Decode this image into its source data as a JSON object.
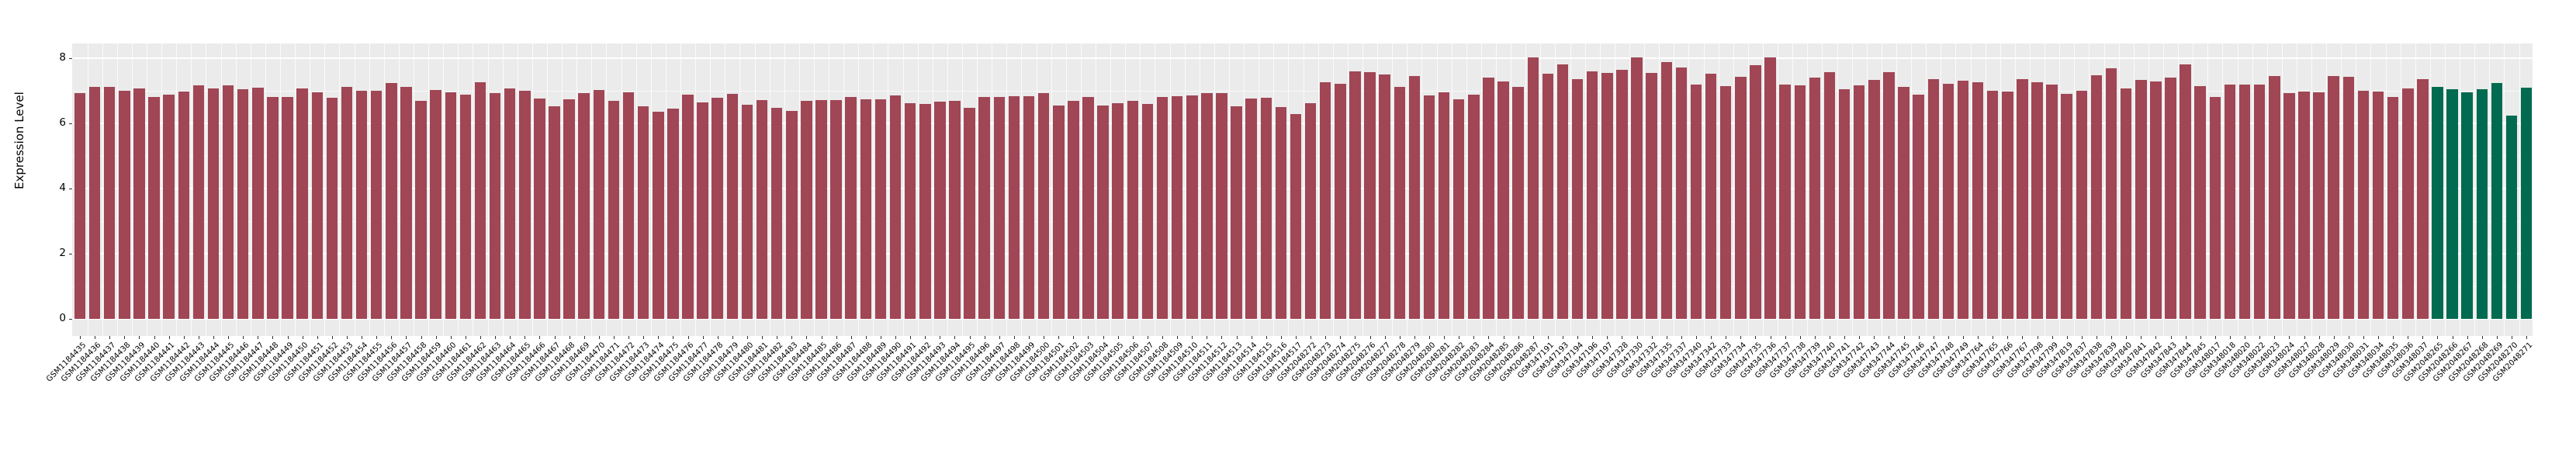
{
  "chart_data": {
    "type": "bar",
    "title": "",
    "xlabel": "",
    "ylabel": "Expression Level",
    "ylim": [
      0,
      8.45
    ],
    "yticks": [
      0,
      2,
      4,
      6,
      8
    ],
    "grid": "on",
    "legend_position": "none",
    "colors": {
      "red_group": "#A04655",
      "green_group": "#006B50"
    },
    "bars": [
      {
        "label": "GSM1184435",
        "value": 6.92,
        "group": "red_group"
      },
      {
        "label": "GSM1184436",
        "value": 7.11,
        "group": "red_group"
      },
      {
        "label": "GSM1184437",
        "value": 7.11,
        "group": "red_group"
      },
      {
        "label": "GSM1184438",
        "value": 6.99,
        "group": "red_group"
      },
      {
        "label": "GSM1184439",
        "value": 7.07,
        "group": "red_group"
      },
      {
        "label": "GSM1184440",
        "value": 6.81,
        "group": "red_group"
      },
      {
        "label": "GSM1184441",
        "value": 6.88,
        "group": "red_group"
      },
      {
        "label": "GSM1184442",
        "value": 6.97,
        "group": "red_group"
      },
      {
        "label": "GSM1184443",
        "value": 7.16,
        "group": "red_group"
      },
      {
        "label": "GSM1184444",
        "value": 7.08,
        "group": "red_group"
      },
      {
        "label": "GSM1184445",
        "value": 7.17,
        "group": "red_group"
      },
      {
        "label": "GSM1184446",
        "value": 7.04,
        "group": "red_group"
      },
      {
        "label": "GSM1184447",
        "value": 7.1,
        "group": "red_group"
      },
      {
        "label": "GSM1184448",
        "value": 6.8,
        "group": "red_group"
      },
      {
        "label": "GSM1184449",
        "value": 6.82,
        "group": "red_group"
      },
      {
        "label": "GSM1184450",
        "value": 7.08,
        "group": "red_group"
      },
      {
        "label": "GSM1184451",
        "value": 6.96,
        "group": "red_group"
      },
      {
        "label": "GSM1184452",
        "value": 6.79,
        "group": "red_group"
      },
      {
        "label": "GSM1184453",
        "value": 7.13,
        "group": "red_group"
      },
      {
        "label": "GSM1184454",
        "value": 7.01,
        "group": "red_group"
      },
      {
        "label": "GSM1184455",
        "value": 6.99,
        "group": "red_group"
      },
      {
        "label": "GSM1184456",
        "value": 7.23,
        "group": "red_group"
      },
      {
        "label": "GSM1184457",
        "value": 7.12,
        "group": "red_group"
      },
      {
        "label": "GSM1184458",
        "value": 6.69,
        "group": "red_group"
      },
      {
        "label": "GSM1184459",
        "value": 7.03,
        "group": "red_group"
      },
      {
        "label": "GSM1184460",
        "value": 6.95,
        "group": "red_group"
      },
      {
        "label": "GSM1184461",
        "value": 6.88,
        "group": "red_group"
      },
      {
        "label": "GSM1184462",
        "value": 7.27,
        "group": "red_group"
      },
      {
        "label": "GSM1184463",
        "value": 6.94,
        "group": "red_group"
      },
      {
        "label": "GSM1184464",
        "value": 7.06,
        "group": "red_group"
      },
      {
        "label": "GSM1184465",
        "value": 7.01,
        "group": "red_group"
      },
      {
        "label": "GSM1184466",
        "value": 6.76,
        "group": "red_group"
      },
      {
        "label": "GSM1184467",
        "value": 6.53,
        "group": "red_group"
      },
      {
        "label": "GSM1184468",
        "value": 6.73,
        "group": "red_group"
      },
      {
        "label": "GSM1184469",
        "value": 6.92,
        "group": "red_group"
      },
      {
        "label": "GSM1184470",
        "value": 7.03,
        "group": "red_group"
      },
      {
        "label": "GSM1184471",
        "value": 6.68,
        "group": "red_group"
      },
      {
        "label": "GSM1184472",
        "value": 6.95,
        "group": "red_group"
      },
      {
        "label": "GSM1184473",
        "value": 6.53,
        "group": "red_group"
      },
      {
        "label": "GSM1184474",
        "value": 6.36,
        "group": "red_group"
      },
      {
        "label": "GSM1184475",
        "value": 6.45,
        "group": "red_group"
      },
      {
        "label": "GSM1184476",
        "value": 6.89,
        "group": "red_group"
      },
      {
        "label": "GSM1184477",
        "value": 6.65,
        "group": "red_group"
      },
      {
        "label": "GSM1184478",
        "value": 6.79,
        "group": "red_group"
      },
      {
        "label": "GSM1184479",
        "value": 6.91,
        "group": "red_group"
      },
      {
        "label": "GSM1184480",
        "value": 6.57,
        "group": "red_group"
      },
      {
        "label": "GSM1184481",
        "value": 6.71,
        "group": "red_group"
      },
      {
        "label": "GSM1184482",
        "value": 6.48,
        "group": "red_group"
      },
      {
        "label": "GSM1184483",
        "value": 6.39,
        "group": "red_group"
      },
      {
        "label": "GSM1184484",
        "value": 6.7,
        "group": "red_group"
      },
      {
        "label": "GSM1184485",
        "value": 6.72,
        "group": "red_group"
      },
      {
        "label": "GSM1184486",
        "value": 6.72,
        "group": "red_group"
      },
      {
        "label": "GSM1184487",
        "value": 6.82,
        "group": "red_group"
      },
      {
        "label": "GSM1184488",
        "value": 6.75,
        "group": "red_group"
      },
      {
        "label": "GSM1184489",
        "value": 6.73,
        "group": "red_group"
      },
      {
        "label": "GSM1184490",
        "value": 6.85,
        "group": "red_group"
      },
      {
        "label": "GSM1184491",
        "value": 6.63,
        "group": "red_group"
      },
      {
        "label": "GSM1184492",
        "value": 6.59,
        "group": "red_group"
      },
      {
        "label": "GSM1184493",
        "value": 6.66,
        "group": "red_group"
      },
      {
        "label": "GSM1184494",
        "value": 6.7,
        "group": "red_group"
      },
      {
        "label": "GSM1184495",
        "value": 6.48,
        "group": "red_group"
      },
      {
        "label": "GSM1184496",
        "value": 6.81,
        "group": "red_group"
      },
      {
        "label": "GSM1184497",
        "value": 6.81,
        "group": "red_group"
      },
      {
        "label": "GSM1184498",
        "value": 6.84,
        "group": "red_group"
      },
      {
        "label": "GSM1184499",
        "value": 6.83,
        "group": "red_group"
      },
      {
        "label": "GSM1184500",
        "value": 6.92,
        "group": "red_group"
      },
      {
        "label": "GSM1184501",
        "value": 6.55,
        "group": "red_group"
      },
      {
        "label": "GSM1184502",
        "value": 6.69,
        "group": "red_group"
      },
      {
        "label": "GSM1184503",
        "value": 6.82,
        "group": "red_group"
      },
      {
        "label": "GSM1184504",
        "value": 6.55,
        "group": "red_group"
      },
      {
        "label": "GSM1184505",
        "value": 6.63,
        "group": "red_group"
      },
      {
        "label": "GSM1184506",
        "value": 6.7,
        "group": "red_group"
      },
      {
        "label": "GSM1184507",
        "value": 6.59,
        "group": "red_group"
      },
      {
        "label": "GSM1184508",
        "value": 6.8,
        "group": "red_group"
      },
      {
        "label": "GSM1184509",
        "value": 6.83,
        "group": "red_group"
      },
      {
        "label": "GSM1184510",
        "value": 6.86,
        "group": "red_group"
      },
      {
        "label": "GSM1184511",
        "value": 6.93,
        "group": "red_group"
      },
      {
        "label": "GSM1184512",
        "value": 6.94,
        "group": "red_group"
      },
      {
        "label": "GSM1184513",
        "value": 6.52,
        "group": "red_group"
      },
      {
        "label": "GSM1184514",
        "value": 6.77,
        "group": "red_group"
      },
      {
        "label": "GSM1184515",
        "value": 6.78,
        "group": "red_group"
      },
      {
        "label": "GSM1184516",
        "value": 6.51,
        "group": "red_group"
      },
      {
        "label": "GSM1184517",
        "value": 6.28,
        "group": "red_group"
      },
      {
        "label": "GSM2048272",
        "value": 6.61,
        "group": "red_group"
      },
      {
        "label": "GSM2048273",
        "value": 7.27,
        "group": "red_group"
      },
      {
        "label": "GSM2048274",
        "value": 7.22,
        "group": "red_group"
      },
      {
        "label": "GSM2048275",
        "value": 7.6,
        "group": "red_group"
      },
      {
        "label": "GSM2048276",
        "value": 7.58,
        "group": "red_group"
      },
      {
        "label": "GSM2048277",
        "value": 7.5,
        "group": "red_group"
      },
      {
        "label": "GSM2048278",
        "value": 7.12,
        "group": "red_group"
      },
      {
        "label": "GSM2048279",
        "value": 7.46,
        "group": "red_group"
      },
      {
        "label": "GSM2048280",
        "value": 6.85,
        "group": "red_group"
      },
      {
        "label": "GSM2048281",
        "value": 6.96,
        "group": "red_group"
      },
      {
        "label": "GSM2048282",
        "value": 6.73,
        "group": "red_group"
      },
      {
        "label": "GSM2048283",
        "value": 6.89,
        "group": "red_group"
      },
      {
        "label": "GSM2048284",
        "value": 7.4,
        "group": "red_group"
      },
      {
        "label": "GSM2048285",
        "value": 7.29,
        "group": "red_group"
      },
      {
        "label": "GSM2048286",
        "value": 7.12,
        "group": "red_group"
      },
      {
        "label": "GSM2048287",
        "value": 8.02,
        "group": "red_group"
      },
      {
        "label": "GSM347191",
        "value": 7.53,
        "group": "red_group"
      },
      {
        "label": "GSM347193",
        "value": 7.8,
        "group": "red_group"
      },
      {
        "label": "GSM347194",
        "value": 7.36,
        "group": "red_group"
      },
      {
        "label": "GSM347196",
        "value": 7.59,
        "group": "red_group"
      },
      {
        "label": "GSM347197",
        "value": 7.55,
        "group": "red_group"
      },
      {
        "label": "GSM347328",
        "value": 7.65,
        "group": "red_group"
      },
      {
        "label": "GSM347330",
        "value": 8.02,
        "group": "red_group"
      },
      {
        "label": "GSM347332",
        "value": 7.55,
        "group": "red_group"
      },
      {
        "label": "GSM347335",
        "value": 7.89,
        "group": "red_group"
      },
      {
        "label": "GSM347337",
        "value": 7.72,
        "group": "red_group"
      },
      {
        "label": "GSM347340",
        "value": 7.2,
        "group": "red_group"
      },
      {
        "label": "GSM347342",
        "value": 7.52,
        "group": "red_group"
      },
      {
        "label": "GSM347733",
        "value": 7.14,
        "group": "red_group"
      },
      {
        "label": "GSM347734",
        "value": 7.42,
        "group": "red_group"
      },
      {
        "label": "GSM347735",
        "value": 7.79,
        "group": "red_group"
      },
      {
        "label": "GSM347736",
        "value": 8.02,
        "group": "red_group"
      },
      {
        "label": "GSM347737",
        "value": 7.18,
        "group": "red_group"
      },
      {
        "label": "GSM347738",
        "value": 7.17,
        "group": "red_group"
      },
      {
        "label": "GSM347739",
        "value": 7.4,
        "group": "red_group"
      },
      {
        "label": "GSM347740",
        "value": 7.58,
        "group": "red_group"
      },
      {
        "label": "GSM347741",
        "value": 7.05,
        "group": "red_group"
      },
      {
        "label": "GSM347742",
        "value": 7.17,
        "group": "red_group"
      },
      {
        "label": "GSM347743",
        "value": 7.34,
        "group": "red_group"
      },
      {
        "label": "GSM347744",
        "value": 7.56,
        "group": "red_group"
      },
      {
        "label": "GSM347745",
        "value": 7.11,
        "group": "red_group"
      },
      {
        "label": "GSM347746",
        "value": 6.89,
        "group": "red_group"
      },
      {
        "label": "GSM347747",
        "value": 7.35,
        "group": "red_group"
      },
      {
        "label": "GSM347748",
        "value": 7.22,
        "group": "red_group"
      },
      {
        "label": "GSM347749",
        "value": 7.31,
        "group": "red_group"
      },
      {
        "label": "GSM347764",
        "value": 7.26,
        "group": "red_group"
      },
      {
        "label": "GSM347765",
        "value": 7.0,
        "group": "red_group"
      },
      {
        "label": "GSM347766",
        "value": 6.98,
        "group": "red_group"
      },
      {
        "label": "GSM347767",
        "value": 7.35,
        "group": "red_group"
      },
      {
        "label": "GSM347798",
        "value": 7.27,
        "group": "red_group"
      },
      {
        "label": "GSM347799",
        "value": 7.2,
        "group": "red_group"
      },
      {
        "label": "GSM347819",
        "value": 6.91,
        "group": "red_group"
      },
      {
        "label": "GSM347837",
        "value": 6.99,
        "group": "red_group"
      },
      {
        "label": "GSM347838",
        "value": 7.47,
        "group": "red_group"
      },
      {
        "label": "GSM347839",
        "value": 7.69,
        "group": "red_group"
      },
      {
        "label": "GSM347840",
        "value": 7.08,
        "group": "red_group"
      },
      {
        "label": "GSM347841",
        "value": 7.33,
        "group": "red_group"
      },
      {
        "label": "GSM347842",
        "value": 7.28,
        "group": "red_group"
      },
      {
        "label": "GSM347843",
        "value": 7.41,
        "group": "red_group"
      },
      {
        "label": "GSM347844",
        "value": 7.82,
        "group": "red_group"
      },
      {
        "label": "GSM347845",
        "value": 7.14,
        "group": "red_group"
      },
      {
        "label": "GSM348017",
        "value": 6.82,
        "group": "red_group"
      },
      {
        "label": "GSM348018",
        "value": 7.2,
        "group": "red_group"
      },
      {
        "label": "GSM348020",
        "value": 7.2,
        "group": "red_group"
      },
      {
        "label": "GSM348022",
        "value": 7.19,
        "group": "red_group"
      },
      {
        "label": "GSM348023",
        "value": 7.46,
        "group": "red_group"
      },
      {
        "label": "GSM348024",
        "value": 6.92,
        "group": "red_group"
      },
      {
        "label": "GSM348027",
        "value": 6.98,
        "group": "red_group"
      },
      {
        "label": "GSM348028",
        "value": 6.95,
        "group": "red_group"
      },
      {
        "label": "GSM348029",
        "value": 7.45,
        "group": "red_group"
      },
      {
        "label": "GSM348030",
        "value": 7.43,
        "group": "red_group"
      },
      {
        "label": "GSM348031",
        "value": 7.01,
        "group": "red_group"
      },
      {
        "label": "GSM348034",
        "value": 6.98,
        "group": "red_group"
      },
      {
        "label": "GSM348035",
        "value": 6.8,
        "group": "red_group"
      },
      {
        "label": "GSM348036",
        "value": 7.07,
        "group": "red_group"
      },
      {
        "label": "GSM348037",
        "value": 7.36,
        "group": "red_group"
      },
      {
        "label": "GSM2048265",
        "value": 7.13,
        "group": "green_group"
      },
      {
        "label": "GSM2048266",
        "value": 7.05,
        "group": "green_group"
      },
      {
        "label": "GSM2048267",
        "value": 6.95,
        "group": "green_group"
      },
      {
        "label": "GSM2048268",
        "value": 7.05,
        "group": "green_group"
      },
      {
        "label": "GSM2048269",
        "value": 7.24,
        "group": "green_group"
      },
      {
        "label": "GSM2048270",
        "value": 6.25,
        "group": "green_group"
      },
      {
        "label": "GSM2048271",
        "value": 7.09,
        "group": "green_group"
      }
    ]
  }
}
